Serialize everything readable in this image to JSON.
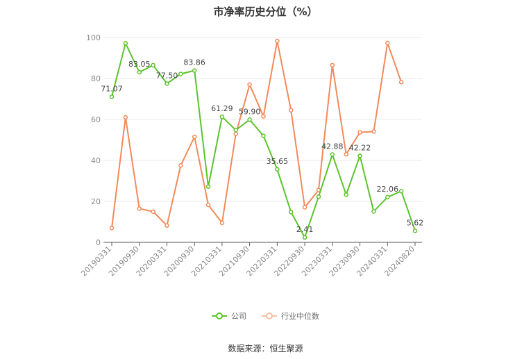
{
  "title": "市净率历史分位（%）",
  "source": "数据来源：恒生聚源",
  "colors": {
    "company": "#5cc32b",
    "industry": "#f2895a",
    "axis": "#555555",
    "grid": "#e8e8e8",
    "tick_text": "#888888",
    "label_text": "#444444"
  },
  "chart_data": {
    "type": "line",
    "title": "市净率历史分位（%）",
    "ylim": [
      0,
      100
    ],
    "yticks": [
      0,
      20,
      40,
      60,
      80,
      100
    ],
    "x": [
      "20190331",
      "20190630",
      "20190930",
      "20191231",
      "20200331",
      "20200630",
      "20200930",
      "20201231",
      "20210331",
      "20210630",
      "20210930",
      "20211231",
      "20220331",
      "20220630",
      "20220930",
      "20221231",
      "20230331",
      "20230630",
      "20230930",
      "20231231",
      "20240331",
      "20240630",
      "20240820"
    ],
    "xtick_labels": [
      "20190331",
      "20190930",
      "20200331",
      "20200930",
      "20210331",
      "20210930",
      "20220331",
      "20220930",
      "20230331",
      "20230930",
      "20240331",
      "20240820"
    ],
    "series": [
      {
        "name": "公司",
        "color": "#5cc32b",
        "values": [
          71.07,
          97.2,
          83.05,
          86.5,
          77.5,
          82.2,
          83.86,
          27.2,
          61.29,
          54.8,
          59.9,
          52.0,
          35.65,
          14.8,
          2.41,
          22.3,
          42.88,
          23.3,
          42.22,
          15.1,
          22.06,
          25.0,
          5.62
        ],
        "labels": {
          "0": "71.07",
          "2": "83.05",
          "4": "77.50",
          "6": "83.86",
          "8": "61.29",
          "10": "59.90",
          "12": "35.65",
          "14": "2.41",
          "16": "42.88",
          "18": "42.22",
          "20": "22.06",
          "22": "5.62"
        }
      },
      {
        "name": "行业中位数",
        "color": "#f2895a",
        "values": [
          7.0,
          61.0,
          16.5,
          15.0,
          8.2,
          37.5,
          51.5,
          18.3,
          9.5,
          53.0,
          77.0,
          61.5,
          98.3,
          64.5,
          17.1,
          25.5,
          86.5,
          43.0,
          53.7,
          54.1,
          97.3,
          78.2,
          null
        ]
      }
    ],
    "grid": true,
    "legend_position": "bottom"
  }
}
